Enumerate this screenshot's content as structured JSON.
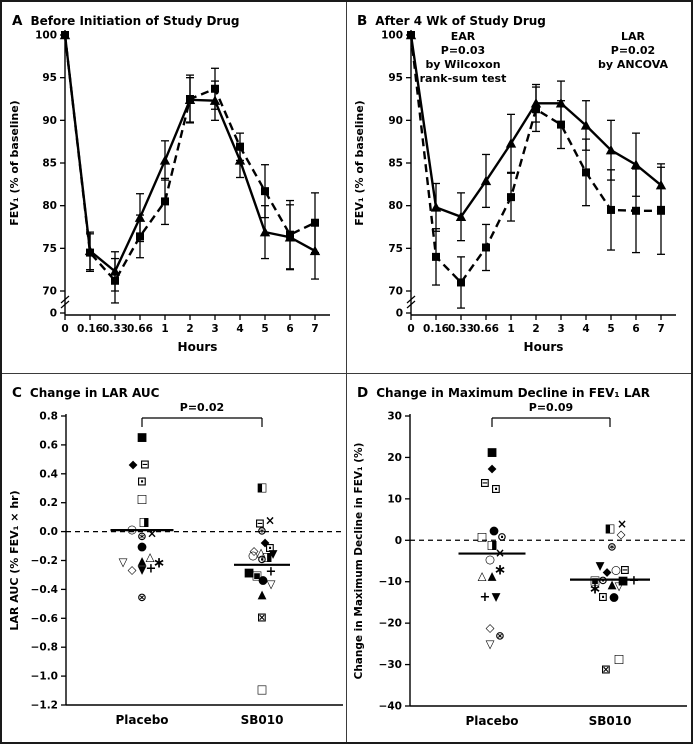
{
  "figure": {
    "background": "#ffffff",
    "border_color": "#1a1a1a",
    "divider_color": "#3b3b3b",
    "ink_color": "#000000"
  },
  "chart_data": [
    {
      "panel": "A",
      "title": "Before Initiation of Study Drug",
      "type": "line",
      "xlabel": "Hours",
      "ylabel": "FEV₁ (% of baseline)",
      "x_categories": [
        "0",
        "0.16",
        "0.33",
        "0.66",
        "1",
        "2",
        "3",
        "4",
        "5",
        "6",
        "7"
      ],
      "yticks": [
        100,
        95,
        90,
        85,
        80,
        75,
        70
      ],
      "ylim": [
        70,
        100
      ],
      "y_axis_break_tick": "0",
      "grid": false,
      "legend": "none",
      "series": [
        {
          "name": "solid-triangle",
          "marker": "triangle",
          "line": "solid",
          "values": [
            100,
            74.7,
            72.3,
            78.6,
            85.3,
            92.4,
            92.3,
            85.3,
            76.9,
            76.3,
            74.7
          ],
          "errors": [
            0,
            2.2,
            2.3,
            2.8,
            2.3,
            2.6,
            2.3,
            2.0,
            3.1,
            3.8,
            3.3
          ]
        },
        {
          "name": "dashed-square",
          "marker": "square",
          "line": "dashed",
          "values": [
            100,
            74.5,
            71.2,
            76.4,
            80.5,
            92.5,
            93.7,
            86.9,
            81.7,
            76.6,
            78.0
          ],
          "errors": [
            0,
            2.2,
            2.6,
            2.5,
            2.7,
            2.8,
            2.4,
            1.6,
            3.1,
            4.0,
            3.5
          ]
        }
      ]
    },
    {
      "panel": "B",
      "title": "After 4 Wk of Study Drug",
      "type": "line",
      "xlabel": "Hours",
      "ylabel": "FEV₁ (% of baseline)",
      "x_categories": [
        "0",
        "0.16",
        "0.33",
        "0.66",
        "1",
        "2",
        "3",
        "4",
        "5",
        "6",
        "7"
      ],
      "yticks": [
        100,
        95,
        90,
        85,
        80,
        75,
        70
      ],
      "ylim": [
        70,
        100
      ],
      "y_axis_break_tick": "0",
      "grid": false,
      "legend": "none",
      "annotations": [
        {
          "lines": [
            "EAR",
            "P=0.03",
            "by Wilcoxon",
            "rank-sum test"
          ]
        },
        {
          "lines": [
            "LAR",
            "P=0.02",
            "by ANCOVA"
          ]
        }
      ],
      "series": [
        {
          "name": "solid-triangle",
          "marker": "triangle",
          "line": "solid",
          "values": [
            100,
            79.8,
            78.7,
            82.9,
            87.3,
            92.0,
            92.0,
            89.4,
            86.5,
            84.8,
            82.4
          ],
          "errors": [
            0,
            2.8,
            2.8,
            3.1,
            3.4,
            2.2,
            2.6,
            2.9,
            3.5,
            3.7,
            2.5
          ]
        },
        {
          "name": "dashed-square",
          "marker": "square",
          "line": "dashed",
          "values": [
            100,
            74.0,
            71.0,
            75.1,
            81.0,
            91.3,
            89.5,
            83.9,
            79.5,
            79.4,
            79.4
          ],
          "errors": [
            0,
            3.3,
            3.0,
            2.7,
            2.8,
            2.6,
            2.8,
            3.9,
            4.7,
            4.9,
            5.1
          ]
        }
      ]
    },
    {
      "panel": "C",
      "title": "Change in LAR AUC",
      "type": "scatter",
      "ylabel": "LAR AUC (% FEV₁ × hr)",
      "p_value": "P=0.02",
      "yticks": [
        0.8,
        0.6,
        0.4,
        0.2,
        0.0,
        -0.2,
        -0.4,
        -0.6,
        -0.8,
        -1.0,
        -1.2
      ],
      "tick_decimals": 1,
      "ylim": [
        -1.2,
        0.8
      ],
      "zero_line_dashed": true,
      "grid": false,
      "groups": [
        {
          "label": "Placebo",
          "mean": 0.01,
          "points": [
            [
              "■",
              0.66,
              0
            ],
            [
              "◆",
              0.47,
              -9
            ],
            [
              "⊟",
              0.47,
              3
            ],
            [
              "⊡",
              0.35,
              0
            ],
            [
              "□",
              0.23,
              0
            ],
            [
              "◨",
              0.07,
              2
            ],
            [
              "○",
              0.02,
              -10
            ],
            [
              "×",
              -0.01,
              10
            ],
            [
              "⊛",
              -0.03,
              0
            ],
            [
              "●",
              -0.1,
              0
            ],
            [
              "△",
              -0.17,
              8
            ],
            [
              "▲",
              -0.2,
              0
            ],
            [
              "∗",
              -0.21,
              17
            ],
            [
              "▽",
              -0.21,
              -19
            ],
            [
              "+",
              -0.25,
              9
            ],
            [
              "◇",
              -0.26,
              -10
            ],
            [
              "▼",
              -0.26,
              0
            ],
            [
              "⊗",
              -0.45,
              0
            ]
          ]
        },
        {
          "label": "SB010",
          "mean": -0.23,
          "points": [
            [
              "◧",
              0.31,
              0
            ],
            [
              "×",
              0.08,
              8
            ],
            [
              "⊟",
              0.06,
              -2
            ],
            [
              "⊛",
              0.01,
              0
            ],
            [
              "◆",
              -0.07,
              3
            ],
            [
              "⊡",
              -0.11,
              8
            ],
            [
              "◇",
              -0.13,
              -8
            ],
            [
              "△",
              -0.14,
              -1
            ],
            [
              "▼",
              -0.15,
              11
            ],
            [
              "○",
              -0.16,
              -9
            ],
            [
              "⊙",
              -0.19,
              0
            ],
            [
              "◨",
              -0.17,
              5
            ],
            [
              "+",
              -0.27,
              9
            ],
            [
              "■",
              -0.28,
              -13
            ],
            [
              "▣",
              -0.3,
              -5
            ],
            [
              "●",
              -0.33,
              1
            ],
            [
              "▽",
              -0.36,
              9
            ],
            [
              "▲",
              -0.43,
              0
            ],
            [
              "⊠",
              -0.59,
              0
            ],
            [
              "□",
              -1.09,
              0
            ]
          ]
        }
      ]
    },
    {
      "panel": "D",
      "title": "Change in Maximum Decline in FEV₁ LAR",
      "type": "scatter",
      "ylabel": "Change in Maximum Decline in FEV₁ (%)",
      "p_value": "P=0.09",
      "yticks": [
        30,
        20,
        10,
        0,
        -10,
        -20,
        -30,
        -40
      ],
      "tick_decimals": 0,
      "ylim": [
        -40,
        30
      ],
      "zero_line_dashed": true,
      "grid": false,
      "groups": [
        {
          "label": "Placebo",
          "mean": -3.2,
          "points": [
            [
              "■",
              21.5,
              0
            ],
            [
              "◆",
              17.5,
              0
            ],
            [
              "⊟",
              14,
              -7
            ],
            [
              "⊡",
              12.5,
              4
            ],
            [
              "●",
              2.5,
              2
            ],
            [
              "□",
              1,
              -10
            ],
            [
              "⊙",
              1,
              10
            ],
            [
              "◨",
              -1,
              0
            ],
            [
              "×",
              -3,
              8
            ],
            [
              "○",
              -4.5,
              -2
            ],
            [
              "∗",
              -7,
              8
            ],
            [
              "△",
              -8.5,
              -10
            ],
            [
              "▲",
              -8.5,
              0
            ],
            [
              "+",
              -13.5,
              -7
            ],
            [
              "▼",
              -13.5,
              4
            ],
            [
              "◇",
              -21,
              -2
            ],
            [
              "⊗",
              -23,
              8
            ],
            [
              "▽",
              -25,
              -2
            ]
          ]
        },
        {
          "label": "SB010",
          "mean": -9.5,
          "points": [
            [
              "×",
              4,
              12
            ],
            [
              "◧",
              3,
              0
            ],
            [
              "◇",
              1.5,
              11
            ],
            [
              "⊛",
              -1.5,
              2
            ],
            [
              "▼",
              -6,
              -10
            ],
            [
              "◆",
              -7.5,
              -3
            ],
            [
              "○",
              -7,
              6
            ],
            [
              "⊟",
              -7,
              15
            ],
            [
              "▣",
              -9.5,
              -15
            ],
            [
              "⊙",
              -9.5,
              -7
            ],
            [
              "■",
              -9.5,
              13
            ],
            [
              "+",
              -9.5,
              24
            ],
            [
              "▲",
              -10.5,
              2
            ],
            [
              "∗",
              -11.5,
              -15
            ],
            [
              "▽",
              -11,
              9
            ],
            [
              "⊡",
              -13.5,
              -7
            ],
            [
              "●",
              -13.5,
              4
            ],
            [
              "□",
              -28.5,
              9
            ],
            [
              "⊠",
              -31,
              -4
            ]
          ]
        }
      ]
    }
  ]
}
